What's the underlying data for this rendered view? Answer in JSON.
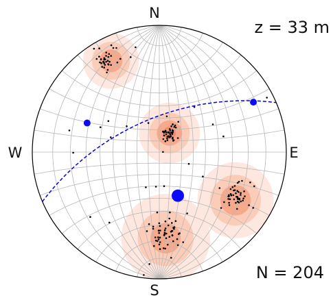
{
  "chart_data": {
    "type": "scatter",
    "plot": "stereonet",
    "title": "z = 33 m",
    "count_label": "N = 204",
    "cardinal_labels": {
      "north": "N",
      "south": "S",
      "east": "E",
      "west": "W"
    },
    "grid": true,
    "colors": {
      "poles": "#000000",
      "great_circle": "#0000dd",
      "markers": "#0a0aff",
      "density": [
        "#fde7df",
        "#fbcdb9",
        "#f7a98b",
        "#f28b6c"
      ]
    },
    "pole_clusters": [
      {
        "name": "north-west",
        "center": [
          -0.42,
          0.73
        ],
        "spread": 0.05,
        "count": 34
      },
      {
        "name": "center",
        "center": [
          0.08,
          0.15
        ],
        "spread": 0.04,
        "count": 44
      },
      {
        "name": "south-east",
        "center": [
          0.6,
          -0.35
        ],
        "spread": 0.06,
        "count": 46
      },
      {
        "name": "south",
        "center": [
          0.06,
          -0.65
        ],
        "spread": 0.07,
        "count": 50
      },
      {
        "name": "scattered",
        "center": [
          0.0,
          0.0
        ],
        "spread": 0.6,
        "count": 30
      }
    ],
    "density_peaks": [
      {
        "center": [
          -0.38,
          0.72
        ],
        "levels": [
          0.22,
          0.15,
          0.09
        ]
      },
      {
        "center": [
          0.08,
          0.15
        ],
        "levels": [
          0.24,
          0.16,
          0.1,
          0.05
        ]
      },
      {
        "center": [
          0.6,
          -0.38
        ],
        "levels": [
          0.3,
          0.2,
          0.12
        ]
      },
      {
        "center": [
          0.05,
          -0.68
        ],
        "levels": [
          0.35,
          0.22,
          0.12
        ]
      }
    ],
    "great_circle": {
      "strike_deg": 247,
      "dip_deg": 60
    },
    "markers": [
      {
        "plunge_deg": 27,
        "trend_deg": 292,
        "size": "small"
      },
      {
        "plunge_deg": 10,
        "trend_deg": 62,
        "size": "small"
      },
      {
        "plunge_deg": 49,
        "trend_deg": 157,
        "size": "large"
      }
    ]
  }
}
